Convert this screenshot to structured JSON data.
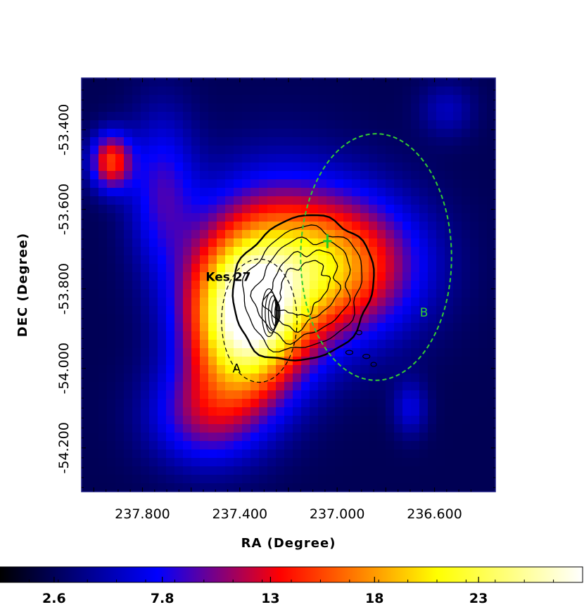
{
  "chart_data": {
    "type": "heatmap",
    "title": "",
    "xlabel": "RA (Degree)",
    "ylabel": "DEC (Degree)",
    "xlim": [
      238.05,
      236.35
    ],
    "ylim": [
      -54.31,
      -53.27
    ],
    "x_ticks": [
      237.8,
      237.4,
      237.0,
      236.6
    ],
    "x_tick_labels": [
      "237.800",
      "237.400",
      "237.000",
      "236.600"
    ],
    "y_ticks": [
      -53.4,
      -53.6,
      -53.8,
      -54.0,
      -54.2
    ],
    "y_tick_labels": [
      "-53.400",
      "-53.600",
      "-53.800",
      "-54.000",
      "-54.200"
    ],
    "colorbar": {
      "min": 0.0,
      "max": 28.0,
      "ticks": [
        2.6,
        7.8,
        13.0,
        18.0,
        23.0
      ],
      "tick_labels": [
        "2.6",
        "7.8",
        "13",
        "18",
        "23"
      ],
      "colors": [
        "#000000",
        "#0000ff",
        "#ff0000",
        "#ffff00",
        "#ffffff"
      ]
    },
    "sources": [
      {
        "x": 237.93,
        "y": -53.48,
        "sigma_x": 0.06,
        "sigma_y": 0.05,
        "amp": 12
      },
      {
        "x": 237.38,
        "y": -53.88,
        "sigma_x": 0.16,
        "sigma_y": 0.14,
        "amp": 22
      },
      {
        "x": 237.25,
        "y": -53.74,
        "sigma_x": 0.22,
        "sigma_y": 0.16,
        "amp": 10
      },
      {
        "x": 236.96,
        "y": -53.74,
        "sigma_x": 0.22,
        "sigma_y": 0.12,
        "amp": 12
      },
      {
        "x": 237.55,
        "y": -54.12,
        "sigma_x": 0.16,
        "sigma_y": 0.09,
        "amp": 7
      },
      {
        "x": 237.72,
        "y": -53.55,
        "sigma_x": 0.1,
        "sigma_y": 0.14,
        "amp": 6
      },
      {
        "x": 236.7,
        "y": -54.1,
        "sigma_x": 0.05,
        "sigma_y": 0.05,
        "amp": 4
      },
      {
        "x": 236.55,
        "y": -53.35,
        "sigma_x": 0.08,
        "sigma_y": 0.05,
        "amp": 3
      }
    ],
    "background_level": 2.5,
    "circles": [
      {
        "name": "A",
        "x": 237.32,
        "y": -53.88,
        "r": 0.155,
        "color": "#000000",
        "label_x": 237.43,
        "label_y": -54.01
      },
      {
        "name": "B",
        "x": 236.84,
        "y": -53.72,
        "r": 0.31,
        "color": "#33cc33",
        "label_x": 236.66,
        "label_y": -53.87
      }
    ],
    "annotations": [
      {
        "text": "Kes 27",
        "x": 237.54,
        "y": -53.78,
        "color": "#000000"
      }
    ],
    "marker": {
      "shape": "cross",
      "x": 237.04,
      "y": -53.68,
      "color": "#22cc22"
    },
    "contour_label": "Kes 27"
  }
}
